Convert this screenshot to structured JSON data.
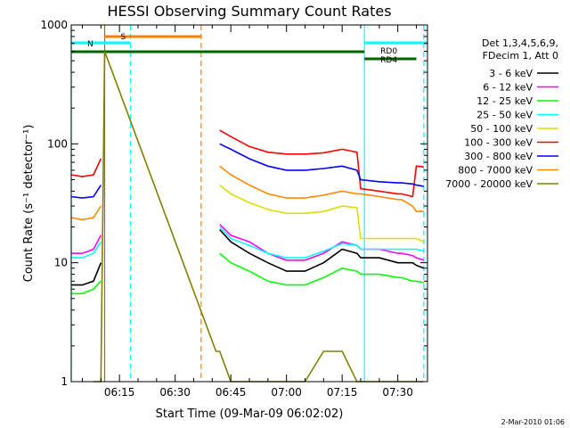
{
  "chart_data": {
    "type": "line",
    "title": "HESSI Observing Summary Count Rates",
    "xlabel": "Start Time (09-Mar-09 06:02:02)",
    "ylabel": "Count Rate (s⁻¹ detector⁻¹)",
    "yscale": "log",
    "ylim": [
      1,
      1000
    ],
    "xlim": [
      "06:02",
      "07:38"
    ],
    "x_ticks": [
      "06:15",
      "06:30",
      "06:45",
      "07:00",
      "07:15",
      "07:30"
    ],
    "y_ticks": [
      "1",
      "10",
      "100",
      "1000"
    ],
    "footer": "2-Mar-2010 01:06",
    "legend_header": [
      "Det 1,3,4,5,6,9,",
      "FDecim 1, Att 0"
    ],
    "legend_placement": "right",
    "x": [
      "06:02",
      "06:05",
      "06:08",
      "06:10",
      "06:11",
      "06:41",
      "06:42",
      "06:45",
      "06:50",
      "06:55",
      "07:00",
      "07:05",
      "07:10",
      "07:15",
      "07:19",
      "07:20",
      "07:25",
      "07:30",
      "07:31",
      "07:34",
      "07:35",
      "07:37"
    ],
    "series": [
      {
        "name": "3 - 6 keV",
        "color": "#000000",
        "values": [
          6.5,
          6.5,
          7,
          10,
          null,
          null,
          19,
          15,
          12,
          10,
          8.5,
          8.5,
          10,
          13,
          12,
          11,
          11,
          10,
          10,
          10,
          9.5,
          9
        ]
      },
      {
        "name": "6 - 12 keV",
        "color": "#ff00ff",
        "values": [
          12,
          12,
          13,
          17,
          null,
          null,
          21,
          17,
          15,
          12,
          10.5,
          10.5,
          12,
          15,
          14,
          13,
          13,
          12,
          12,
          11.5,
          11,
          10.5
        ]
      },
      {
        "name": "12 - 25 keV",
        "color": "#00ff00",
        "values": [
          5.5,
          5.5,
          6,
          7,
          null,
          null,
          12,
          10,
          8.5,
          7,
          6.5,
          6.5,
          7.5,
          9,
          8.5,
          8,
          8,
          7.5,
          7.5,
          7,
          7,
          6.8
        ]
      },
      {
        "name": "25 - 50 keV",
        "color": "#00ffff",
        "values": [
          11,
          11,
          12,
          15,
          null,
          null,
          20,
          16,
          14,
          12,
          11,
          11,
          12.5,
          14.5,
          14,
          13,
          13,
          13,
          13,
          13,
          13,
          12.5
        ]
      },
      {
        "name": "50 - 100 keV",
        "color": "#dddd00",
        "values": [
          null,
          null,
          null,
          null,
          null,
          null,
          45,
          38,
          32,
          28,
          26,
          26,
          27,
          30,
          29,
          16,
          16,
          16,
          16,
          16,
          16,
          15
        ]
      },
      {
        "name": "100 - 300 keV",
        "color": "#ff0000",
        "values": [
          55,
          53,
          55,
          75,
          null,
          null,
          130,
          115,
          95,
          85,
          82,
          82,
          84,
          90,
          85,
          42,
          40,
          38,
          38,
          36,
          65,
          64
        ]
      },
      {
        "name": "300 - 800 keV",
        "color": "#0000ff",
        "values": [
          36,
          35,
          36,
          45,
          null,
          null,
          100,
          90,
          75,
          65,
          60,
          60,
          62,
          65,
          60,
          50,
          48,
          47,
          47,
          46,
          45,
          44
        ]
      },
      {
        "name": "800 - 7000 keV",
        "color": "#ff8800",
        "values": [
          24,
          23,
          24,
          30,
          null,
          null,
          65,
          55,
          45,
          38,
          35,
          35,
          37,
          40,
          38,
          38,
          36,
          34,
          34,
          30,
          27,
          27
        ]
      },
      {
        "name": "7000 - 20000 keV",
        "color": "#808000",
        "values": [
          null,
          null,
          1,
          1,
          600,
          1.8,
          1.8,
          1,
          1,
          1,
          1,
          1,
          1.8,
          1.8,
          1,
          1,
          1,
          1,
          1,
          1,
          1,
          1
        ]
      }
    ],
    "attenuator_bars": [
      {
        "label": "S",
        "start": "06:11",
        "end": "06:37",
        "color": "#ff8000"
      },
      {
        "label": "N",
        "start": "06:02",
        "end": "06:18",
        "color": "#00ffff"
      },
      {
        "label": "",
        "start": "06:02",
        "end": "07:21",
        "color": "#006400"
      },
      {
        "label": "RD0",
        "start": "07:21",
        "end": "07:38",
        "color": "#00ffff"
      },
      {
        "label": "RD4",
        "start": "07:21",
        "end": "07:35",
        "color": "#006400"
      }
    ],
    "vertical_markers": [
      {
        "time": "06:02",
        "color": "#00ffff",
        "style": "solid"
      },
      {
        "time": "06:11",
        "color": "#808000",
        "style": "solid"
      },
      {
        "time": "06:18",
        "color": "#00ffff",
        "style": "dashed"
      },
      {
        "time": "06:37",
        "color": "#ff8000",
        "style": "dashed"
      },
      {
        "time": "07:21",
        "color": "#00ffff",
        "style": "solid"
      },
      {
        "time": "07:37",
        "color": "#00ffff",
        "style": "dashed"
      }
    ]
  }
}
